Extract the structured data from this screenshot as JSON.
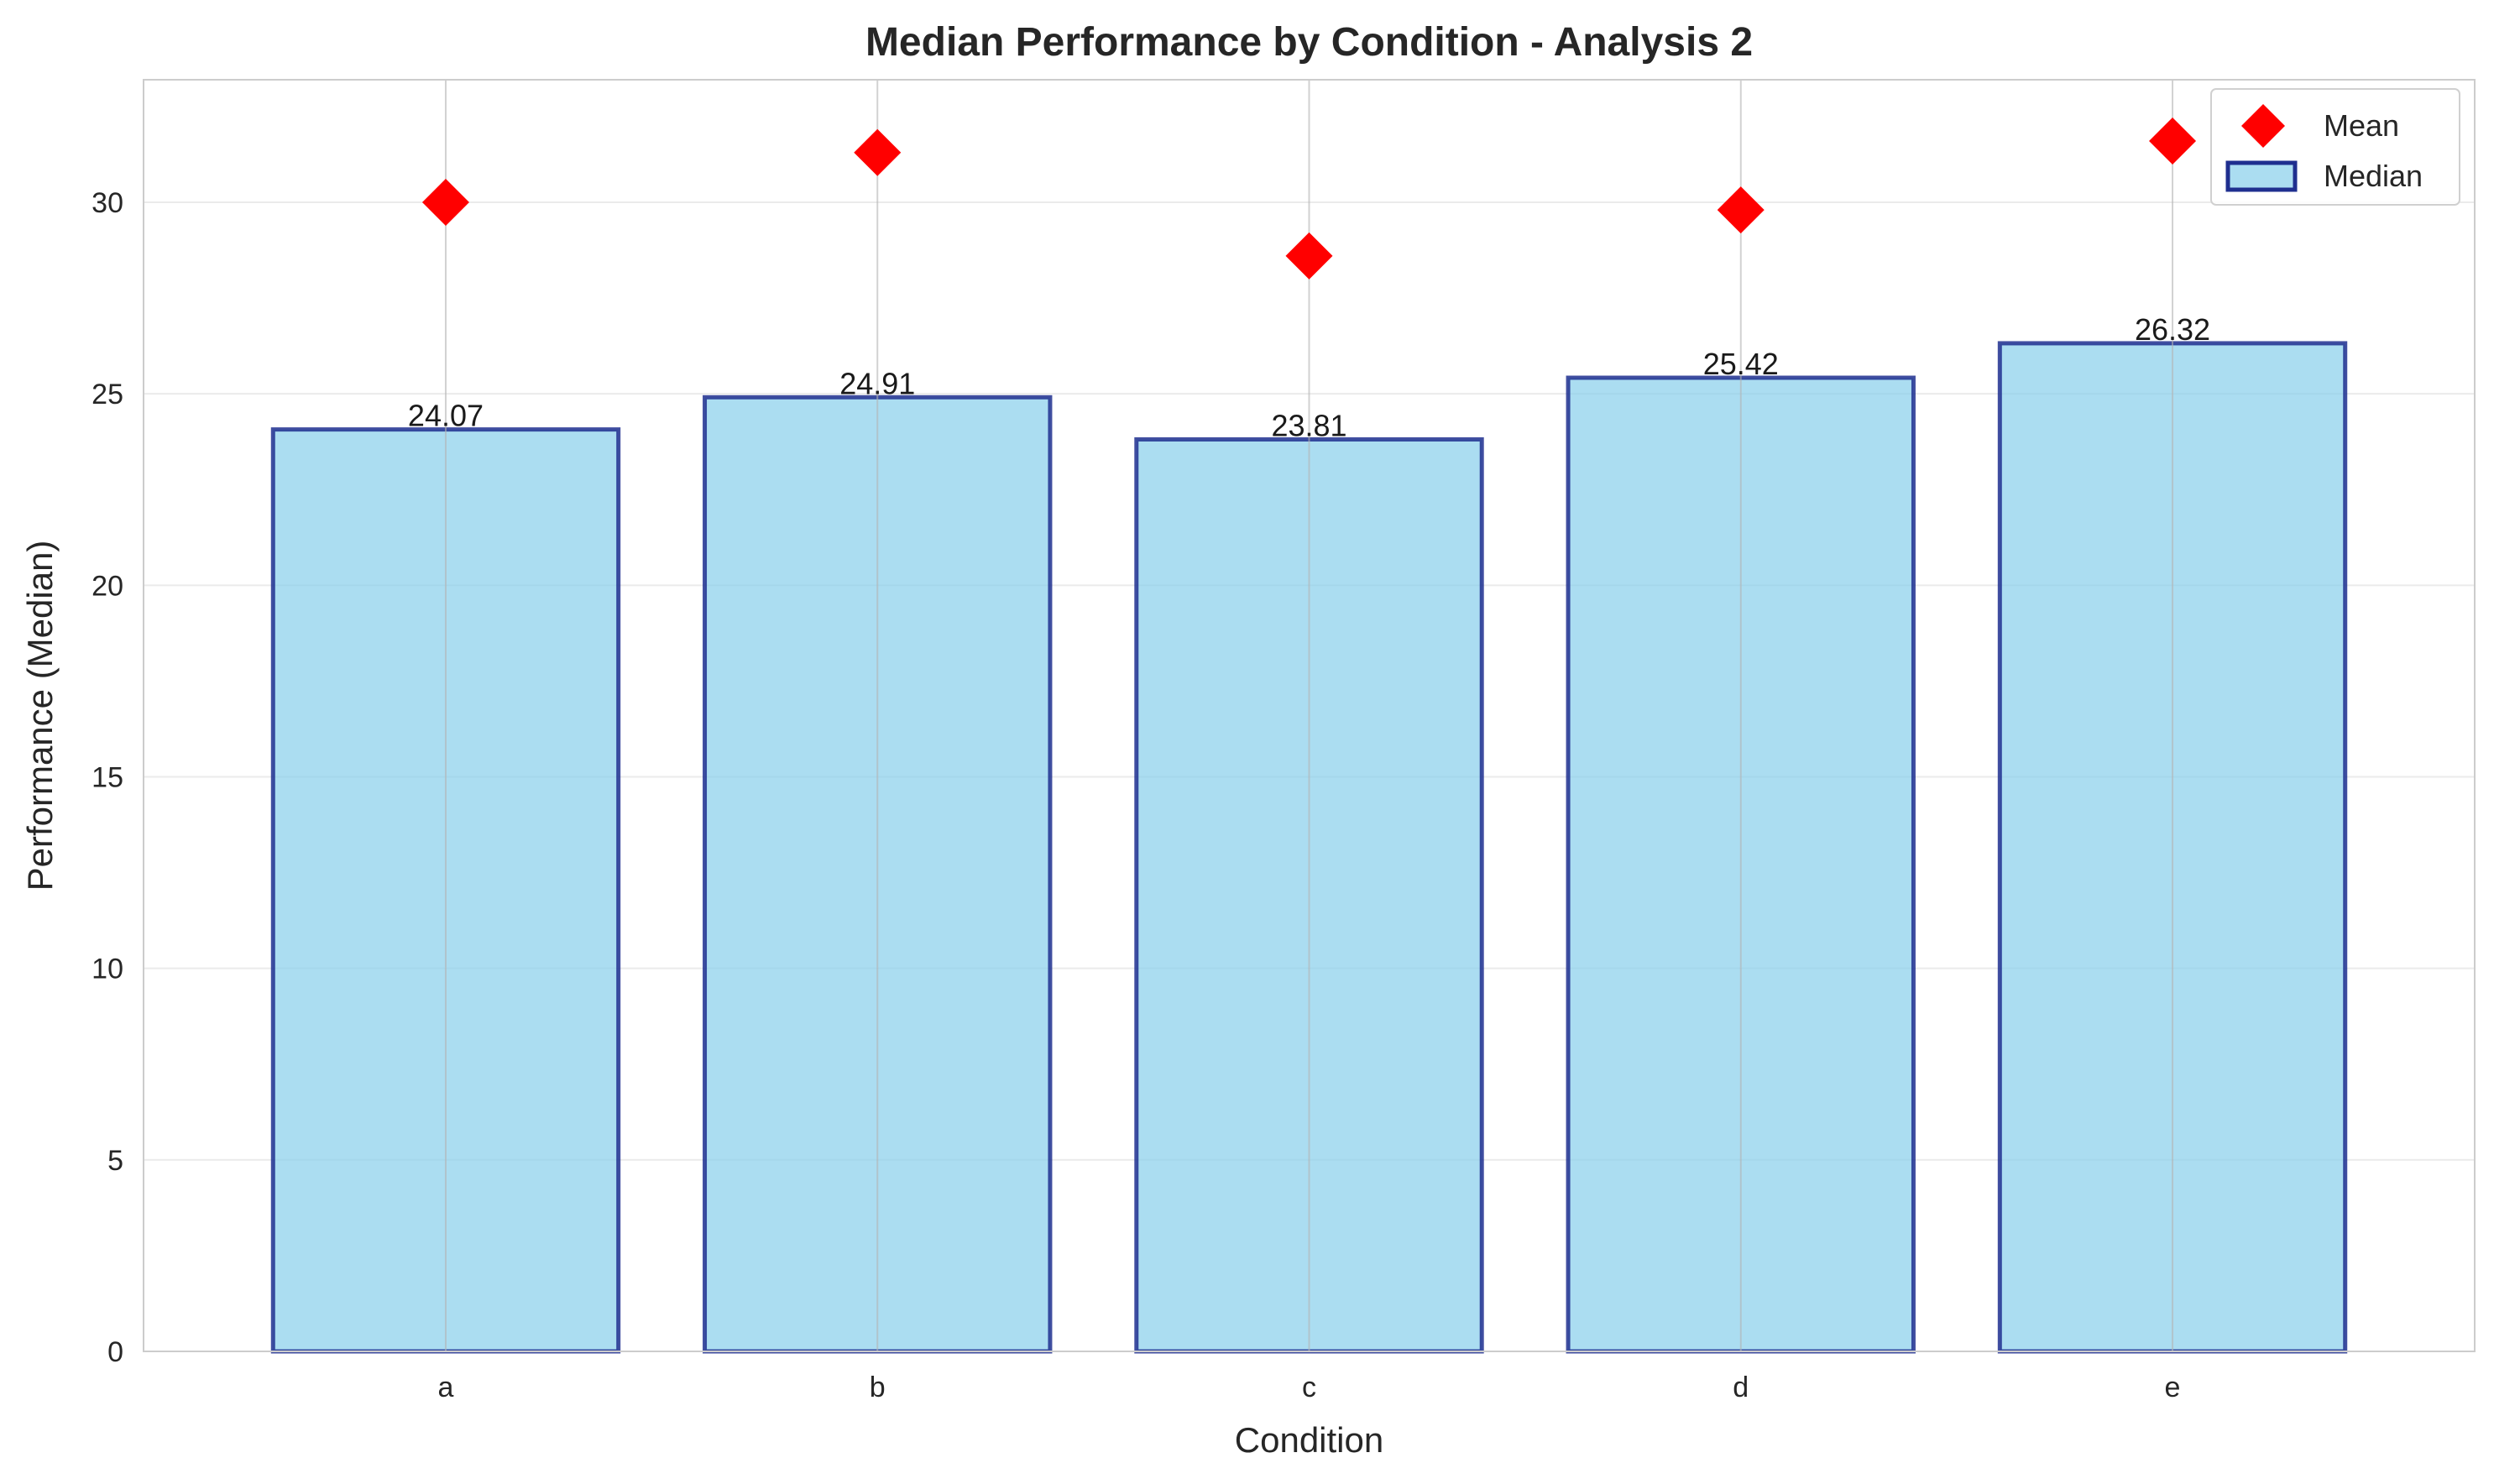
{
  "chart_data": {
    "type": "bar",
    "title": "Median Performance by Condition - Analysis 2",
    "xlabel": "Condition",
    "ylabel": "Performance (Median)",
    "categories": [
      "a",
      "b",
      "c",
      "d",
      "e"
    ],
    "series": [
      {
        "name": "Median",
        "kind": "bar",
        "values": [
          24.07,
          24.91,
          23.81,
          25.42,
          26.32
        ],
        "color": "#87ceeb",
        "edge_color": "#1f2f8f"
      },
      {
        "name": "Mean",
        "kind": "marker",
        "marker": "diamond",
        "values": [
          30.0,
          31.3,
          28.6,
          29.8,
          31.6
        ],
        "color": "#ff0000"
      }
    ],
    "data_labels": [
      "24.07",
      "24.91",
      "23.81",
      "25.42",
      "26.32"
    ],
    "ylim": [
      0,
      33.2
    ],
    "yticks": [
      0,
      5,
      10,
      15,
      20,
      25,
      30
    ],
    "grid": true,
    "legend_position": "top-right"
  }
}
